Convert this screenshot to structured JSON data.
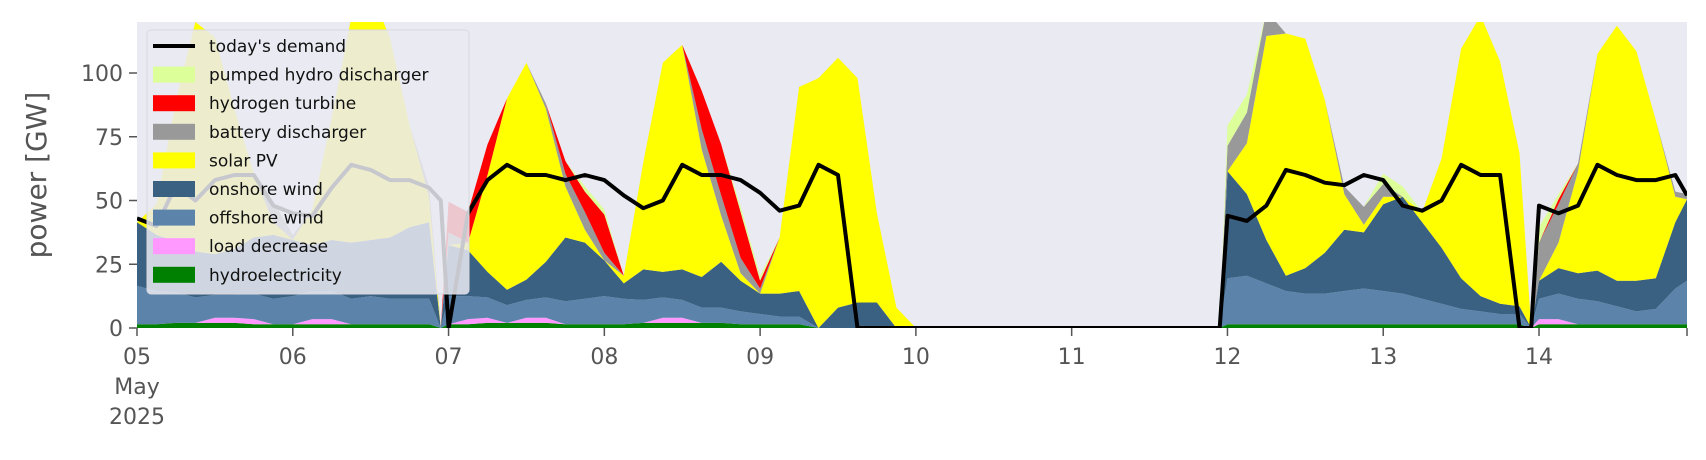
{
  "chart_data": {
    "type": "area",
    "title": "",
    "xlabel": "",
    "ylabel": "power [GW]",
    "ylim": [
      0,
      120
    ],
    "yticks": [
      0,
      25,
      50,
      75,
      100
    ],
    "ytick_labels": [
      "0",
      "25",
      "50",
      "75",
      "100"
    ],
    "xlim": [
      0,
      9.95
    ],
    "xticks": [
      0,
      1,
      2,
      3,
      4,
      5,
      6,
      7,
      8,
      9
    ],
    "xtick_labels": [
      "05",
      "06",
      "07",
      "08",
      "09",
      "10",
      "11",
      "12",
      "13",
      "14"
    ],
    "x_date_labels": [
      "May",
      "2025"
    ],
    "x_units": "days since 2025-05-05 00:00",
    "grid": false,
    "background": "#eaeaf2",
    "legend_position": "top-left",
    "x": [
      0,
      0.125,
      0.25,
      0.375,
      0.5,
      0.625,
      0.75,
      0.875,
      1,
      1.125,
      1.25,
      1.375,
      1.5,
      1.625,
      1.75,
      1.875,
      1.95,
      2,
      2.125,
      2.25,
      2.375,
      2.5,
      2.625,
      2.75,
      2.875,
      3,
      3.125,
      3.25,
      3.375,
      3.5,
      3.625,
      3.75,
      3.875,
      4,
      4.125,
      4.25,
      4.375,
      4.5,
      4.625,
      4.75,
      4.875,
      5,
      5.5,
      6,
      6.5,
      6.95,
      7,
      7.125,
      7.25,
      7.375,
      7.5,
      7.625,
      7.75,
      7.875,
      8,
      8.125,
      8.25,
      8.375,
      8.5,
      8.625,
      8.75,
      8.875,
      8.95,
      9,
      9.125,
      9.25,
      9.375,
      9.5,
      9.625,
      9.75,
      9.875,
      9.95
    ],
    "series": [
      {
        "name": "hydroelectricity",
        "color": "#008000",
        "values": [
          1.5,
          1.5,
          2,
          2,
          2,
          2,
          1.5,
          1.5,
          1.5,
          1.5,
          1.5,
          1.5,
          1.5,
          1.5,
          1.5,
          1.5,
          0,
          1.5,
          1.5,
          2,
          2,
          2,
          2,
          1.5,
          1.5,
          1.5,
          1.5,
          2,
          2,
          2,
          2,
          2,
          1.5,
          1.5,
          1.5,
          1.5,
          0,
          0,
          0,
          0,
          0,
          0,
          0,
          0,
          0,
          0,
          1.5,
          1.5,
          1.5,
          1.5,
          1.5,
          1.5,
          1.5,
          1.5,
          1.5,
          1.5,
          1.5,
          1.5,
          1.5,
          1.5,
          1.5,
          1.5,
          0,
          1.5,
          1.5,
          1.5,
          1.5,
          1.5,
          1.5,
          1.5,
          1.5,
          1.5
        ]
      },
      {
        "name": "load decrease",
        "color": "#ff99ff",
        "values": [
          0,
          0,
          0,
          0,
          2,
          2,
          2,
          0,
          0,
          2,
          2,
          0,
          0,
          0,
          0,
          0,
          0,
          0,
          2,
          2,
          0,
          2,
          2,
          0,
          0,
          0,
          0,
          0,
          2,
          2,
          0,
          0,
          0,
          0,
          0,
          0,
          0,
          0,
          0,
          0,
          0,
          0,
          0,
          0,
          0,
          0,
          0,
          0,
          0,
          0,
          0,
          0,
          0,
          0,
          0,
          0,
          0,
          0,
          0,
          0,
          0,
          0,
          0,
          2,
          2,
          0,
          0,
          0,
          0,
          0,
          0,
          0
        ]
      },
      {
        "name": "offshore wind",
        "color": "#5c84aa",
        "values": [
          15,
          13,
          12,
          10,
          9,
          9,
          10,
          10,
          11,
          11,
          11,
          10,
          11,
          10,
          10,
          10,
          0,
          11,
          9,
          8,
          7,
          7,
          8,
          9,
          10,
          11,
          10,
          9,
          8,
          7,
          6,
          6,
          5,
          4,
          3,
          3,
          0,
          0,
          0,
          0,
          0,
          0,
          0,
          0,
          0,
          0,
          18,
          19,
          16,
          13,
          12,
          12,
          13,
          14,
          13,
          12,
          10,
          8,
          6,
          5,
          4,
          4,
          0,
          8,
          10,
          10,
          9,
          7,
          5,
          6,
          14,
          17
        ]
      },
      {
        "name": "onshore wind",
        "color": "#3b6182",
        "values": [
          25,
          22,
          20,
          18,
          16,
          18,
          22,
          25,
          22,
          18,
          20,
          22,
          22,
          24,
          28,
          30,
          0,
          20,
          18,
          10,
          6,
          8,
          14,
          25,
          22,
          14,
          6,
          12,
          10,
          12,
          12,
          18,
          12,
          8,
          9,
          10,
          0,
          8,
          10,
          10,
          0,
          0,
          0,
          0,
          0,
          0,
          42,
          32,
          17,
          6,
          10,
          16,
          24,
          22,
          34,
          38,
          30,
          22,
          12,
          6,
          4,
          3,
          0,
          7,
          10,
          10,
          12,
          10,
          12,
          12,
          26,
          32
        ]
      },
      {
        "name": "solar PV",
        "color": "#ffff00",
        "values": [
          0,
          12,
          55,
          90,
          85,
          55,
          25,
          5,
          0,
          14,
          48,
          88,
          98,
          78,
          40,
          10,
          0,
          0,
          3,
          38,
          75,
          85,
          60,
          20,
          5,
          0,
          3,
          42,
          82,
          88,
          50,
          18,
          3,
          0,
          22,
          80,
          98,
          98,
          88,
          35,
          8,
          0,
          0,
          0,
          0,
          0,
          0,
          20,
          80,
          95,
          90,
          60,
          14,
          3,
          3,
          0,
          4,
          35,
          90,
          110,
          95,
          60,
          0,
          0,
          10,
          40,
          85,
          100,
          90,
          62,
          10,
          0
        ]
      },
      {
        "name": "battery discharger",
        "color": "#999999",
        "values": [
          0,
          0,
          0,
          0,
          0,
          0,
          0,
          8,
          2,
          0,
          0,
          0,
          0,
          0,
          0,
          4,
          0,
          5,
          0,
          0,
          0,
          0,
          2,
          5,
          7,
          3,
          0,
          0,
          0,
          0,
          8,
          8,
          6,
          2,
          0,
          0,
          0,
          0,
          0,
          0,
          0,
          0,
          0,
          0,
          0,
          0,
          10,
          12,
          10,
          0,
          0,
          0,
          3,
          7,
          5,
          0,
          0,
          0,
          0,
          0,
          0,
          0,
          0,
          15,
          15,
          3,
          0,
          0,
          0,
          0,
          2,
          2
        ]
      },
      {
        "name": "hydrogen turbine",
        "color": "#ff0000",
        "values": [
          0,
          0,
          0,
          0,
          0,
          0,
          0,
          0,
          0,
          0,
          0,
          0,
          0,
          0,
          0,
          0,
          0,
          12,
          12,
          12,
          0,
          0,
          0,
          5,
          8,
          15,
          0,
          0,
          0,
          0,
          15,
          20,
          18,
          3,
          0,
          0,
          0,
          0,
          0,
          0,
          0,
          0,
          0,
          0,
          0,
          0,
          0,
          0,
          0,
          0,
          0,
          0,
          0,
          0,
          0,
          0,
          0,
          0,
          0,
          0,
          0,
          0,
          0,
          0,
          2,
          0,
          0,
          0,
          0,
          0,
          0,
          0
        ]
      },
      {
        "name": "pumped hydro discharger",
        "color": "#ddff99",
        "values": [
          0,
          0,
          0,
          0,
          0,
          0,
          0,
          0,
          0,
          0,
          0,
          0,
          0,
          0,
          0,
          0,
          0,
          0,
          0,
          0,
          0,
          0,
          0,
          0,
          2,
          2,
          0,
          0,
          0,
          0,
          0,
          0,
          2,
          2,
          0,
          0,
          0,
          0,
          0,
          0,
          0,
          0,
          0,
          0,
          0,
          0,
          8,
          7,
          0,
          0,
          0,
          0,
          0,
          0,
          4,
          4,
          0,
          0,
          0,
          0,
          0,
          0,
          0,
          6,
          2,
          0,
          0,
          0,
          0,
          0,
          0,
          0
        ]
      },
      {
        "name": "today's demand",
        "color": "#000000",
        "type": "line",
        "values": [
          43,
          40,
          56,
          50,
          58,
          60,
          60,
          48,
          45,
          44,
          55,
          64,
          62,
          58,
          58,
          55,
          50,
          0,
          45,
          58,
          64,
          60,
          60,
          58,
          60,
          58,
          52,
          47,
          50,
          64,
          60,
          60,
          58,
          53,
          46,
          48,
          64,
          60,
          0,
          0,
          0,
          0,
          0,
          0,
          0,
          0,
          44,
          42,
          48,
          62,
          60,
          57,
          56,
          60,
          58,
          48,
          46,
          50,
          64,
          60,
          60,
          0,
          0,
          48,
          45,
          48,
          64,
          60,
          58,
          58,
          60,
          52
        ]
      }
    ]
  }
}
